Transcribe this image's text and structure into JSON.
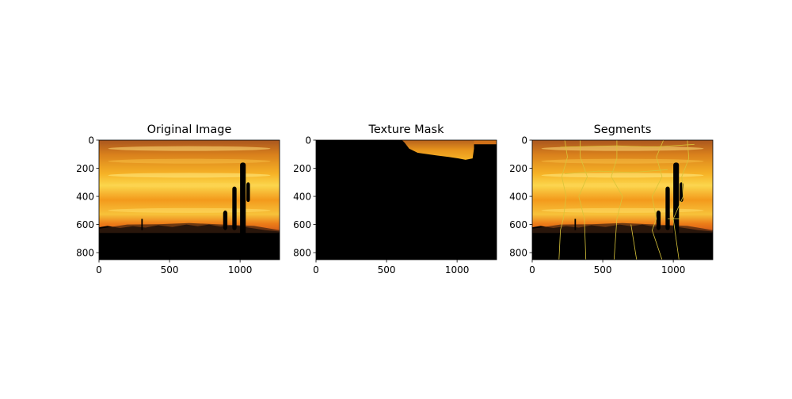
{
  "figure": {
    "background": "#ffffff"
  },
  "colors": {
    "sky_top": "#b9621e",
    "sky_mid": "#f3a21a",
    "sky_glow": "#ffe15a",
    "sky_low": "#e46a16",
    "silhouette": "#000000",
    "mountains": "#3a2010",
    "segment_lines": "#d8c43a"
  },
  "chart_data": [
    {
      "type": "image",
      "title": "Original Image",
      "xlim": [
        0,
        1280
      ],
      "ylim": [
        850,
        0
      ],
      "xticks": [
        0,
        500,
        1000
      ],
      "yticks": [
        0,
        200,
        400,
        600,
        800
      ],
      "image_size": [
        1280,
        850
      ],
      "content": "sunset"
    },
    {
      "type": "image",
      "title": "Texture Mask",
      "xlim": [
        0,
        1280
      ],
      "ylim": [
        850,
        0
      ],
      "xticks": [
        0,
        500,
        1000
      ],
      "yticks": [
        0,
        200,
        400,
        600,
        800
      ],
      "image_size": [
        1280,
        850
      ],
      "content": "mask"
    },
    {
      "type": "image",
      "title": "Segments",
      "xlim": [
        0,
        1280
      ],
      "ylim": [
        850,
        0
      ],
      "xticks": [
        0,
        500,
        1000
      ],
      "yticks": [
        0,
        200,
        400,
        600,
        800
      ],
      "image_size": [
        1280,
        850
      ],
      "content": "segments"
    }
  ]
}
